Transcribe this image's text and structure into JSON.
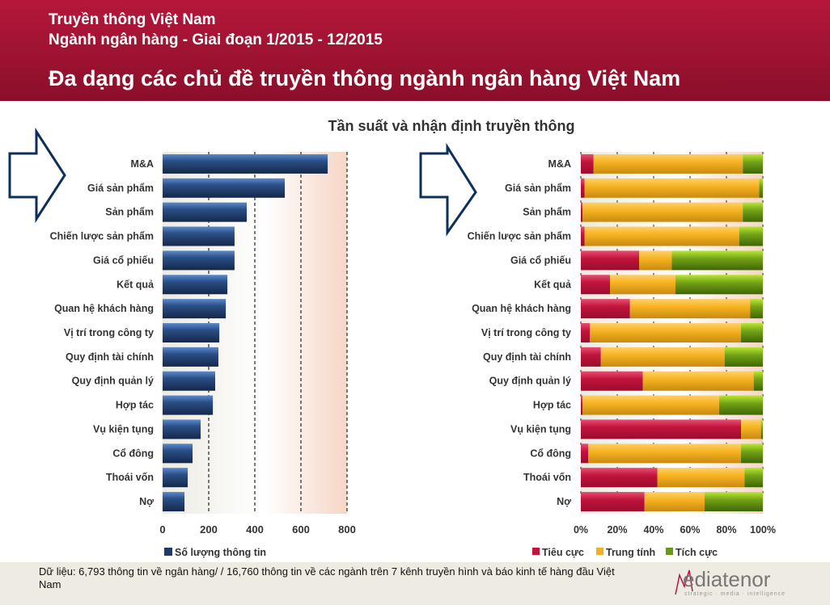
{
  "header": {
    "line1": "Truyền thông Việt Nam",
    "line2": "Ngành ngân hàng - Giai đoạn 1/2015 - 12/2015",
    "title": "Đa dạng các chủ đề truyền thông ngành ngân hàng Việt Nam"
  },
  "chart_title": "Tần suất và nhận định truyền thông",
  "chart_data": [
    {
      "type": "bar",
      "orientation": "horizontal",
      "categories": [
        "M&A",
        "Giá sản phẩm",
        "Sản phẩm",
        "Chiến lược sản phẩm",
        "Giá cổ phiếu",
        "Kết quả",
        "Quan hệ khách hàng",
        "Vị trí trong công ty",
        "Quy định tài chính",
        "Quy định quản lý",
        "Hợp tác",
        "Vụ kiện tụng",
        "Cổ đông",
        "Thoái vốn",
        "Nợ"
      ],
      "series": [
        {
          "name": "Số lượng thông tin",
          "values": [
            716,
            530,
            365,
            312,
            312,
            281,
            274,
            246,
            242,
            228,
            218,
            165,
            130,
            109,
            95
          ],
          "color": "#1f3a66"
        }
      ],
      "xlim": [
        0,
        800
      ],
      "ticks": [
        "0",
        "200",
        "400",
        "600",
        "800"
      ],
      "grid": "dashed vertical",
      "legend": "bottom"
    },
    {
      "type": "bar",
      "orientation": "horizontal",
      "stacked": "percent",
      "categories": [
        "M&A",
        "Giá sản phẩm",
        "Sản phẩm",
        "Chiến lược sản phẩm",
        "Giá cổ phiếu",
        "Kết quả",
        "Quan hệ khách hàng",
        "Vị trí trong công ty",
        "Quy định tài chính",
        "Quy định quản lý",
        "Hợp tác",
        "Vụ kiện tụng",
        "Cổ đông",
        "Thoái vốn",
        "Nợ"
      ],
      "series": [
        {
          "name": "Tiêu cực",
          "color": "#c0143c",
          "values": [
            7,
            2,
            1,
            2,
            32,
            16,
            27,
            5,
            11,
            34,
            1,
            88,
            4,
            42,
            35
          ]
        },
        {
          "name": "Trung tính",
          "color": "#f5b021",
          "values": [
            82,
            96,
            88,
            85,
            18,
            36,
            66,
            83,
            68,
            61,
            75,
            11,
            84,
            48,
            33
          ]
        },
        {
          "name": "Tích cực",
          "color": "#6a9a10",
          "values": [
            11,
            2,
            11,
            13,
            50,
            48,
            7,
            12,
            21,
            5,
            24,
            1,
            12,
            10,
            32
          ]
        }
      ],
      "xlim": [
        0,
        100
      ],
      "ticks": [
        "0%",
        "20%",
        "40%",
        "60%",
        "80%",
        "100%"
      ],
      "legend": "bottom"
    }
  ],
  "footer": {
    "source": "Dữ liệu: 6,793 thông tin về ngân hàng/ / 16,760 thông tin về các ngành trên 7 kênh truyền hình và  báo kinh tế hàng đầu Việt Nam",
    "logo_text": "Mediatenor",
    "logo_tagline": "strategic · media · intelligence"
  }
}
